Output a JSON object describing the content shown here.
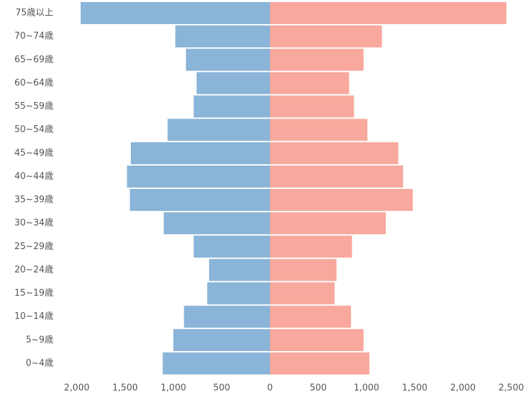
{
  "chart_data": {
    "type": "pyramid",
    "categories": [
      "75歳以上",
      "70~74歳",
      "65~69歳",
      "60~64歳",
      "55~59歳",
      "50~54歳",
      "45~49歳",
      "40~44歳",
      "35~39歳",
      "30~34歳",
      "25~29歳",
      "20~24歳",
      "15~19歳",
      "10~14歳",
      "5~9歳",
      "0~4歳"
    ],
    "series": [
      {
        "side": "left",
        "color": "#8ab4d8",
        "values": [
          1960,
          980,
          870,
          760,
          790,
          1060,
          1440,
          1480,
          1450,
          1100,
          790,
          630,
          650,
          890,
          1000,
          1110
        ]
      },
      {
        "side": "right",
        "color": "#f8a89c",
        "values": [
          2450,
          1160,
          970,
          820,
          870,
          1010,
          1330,
          1380,
          1480,
          1200,
          850,
          690,
          670,
          840,
          970,
          1030
        ]
      }
    ],
    "left_xlim": [
      0,
      2000
    ],
    "left_xticks": [
      {
        "value": 2000,
        "label": "2,000"
      },
      {
        "value": 1500,
        "label": "1,500"
      },
      {
        "value": 1000,
        "label": "1,000"
      },
      500,
      0
    ],
    "right_xlim": [
      0,
      2500
    ],
    "right_xticks": [
      500,
      {
        "value": 1000,
        "label": "1,000"
      },
      {
        "value": 1500,
        "label": "1,500"
      },
      {
        "value": 2000,
        "label": "2,000"
      },
      {
        "value": 2500,
        "label": "2,500"
      }
    ]
  }
}
